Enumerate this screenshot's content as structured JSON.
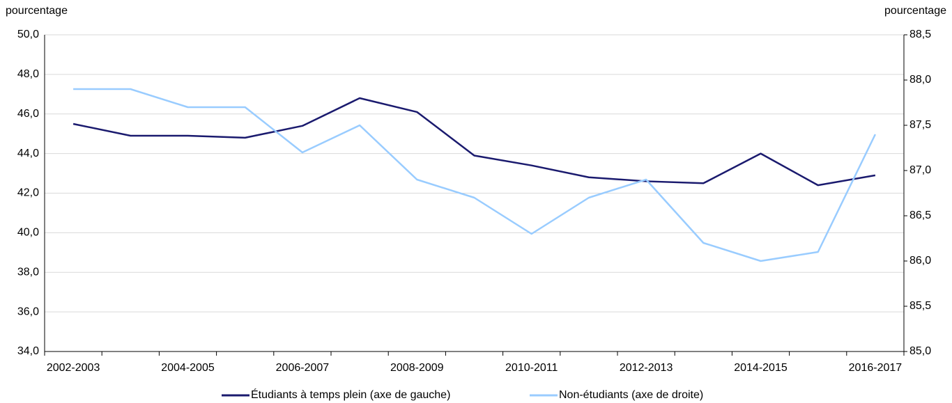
{
  "chart_data": {
    "type": "line",
    "y_label": "pourcentage",
    "y2_label": "pourcentage",
    "categories": [
      "2002-2003",
      null,
      "2004-2005",
      null,
      "2006-2007",
      null,
      "2008-2009",
      null,
      "2010-2011",
      null,
      "2012-2013",
      null,
      "2014-2015",
      null,
      "2016-2017"
    ],
    "series": [
      {
        "name": "Étudiants à temps plein (axe de gauche)",
        "color": "#1a1a6e",
        "values": [
          45.5,
          44.9,
          44.9,
          44.8,
          45.4,
          46.8,
          46.1,
          43.9,
          43.4,
          42.8,
          42.6,
          42.5,
          44.0,
          42.4,
          42.9
        ]
      },
      {
        "name": "Non-étudiants (axe de droite)",
        "color": "#99ccff",
        "axis": "y2",
        "values": [
          87.9,
          87.9,
          87.7,
          87.7,
          87.2,
          87.5,
          86.9,
          86.7,
          86.3,
          86.7,
          86.9,
          86.2,
          86.0,
          86.1,
          87.4
        ]
      }
    ],
    "ylim": [
      34,
      50
    ],
    "yticks": [
      {
        "value": 34,
        "label": "34,0"
      },
      {
        "value": 36,
        "label": "36,0"
      },
      {
        "value": 38,
        "label": "38,0"
      },
      {
        "value": 40,
        "label": "40,0"
      },
      {
        "value": 42,
        "label": "42,0"
      },
      {
        "value": 44,
        "label": "44,0"
      },
      {
        "value": 46,
        "label": "46,0"
      },
      {
        "value": 48,
        "label": "48,0"
      },
      {
        "value": 50,
        "label": "50,0"
      }
    ],
    "y2lim": [
      85,
      88.5
    ],
    "y2ticks": [
      {
        "value": 85,
        "label": "85,0"
      },
      {
        "value": 85.5,
        "label": "85,5"
      },
      {
        "value": 86,
        "label": "86,0"
      },
      {
        "value": 86.5,
        "label": "86,5"
      },
      {
        "value": 87,
        "label": "87,0"
      },
      {
        "value": 87.5,
        "label": "87,5"
      },
      {
        "value": 88,
        "label": "88,0"
      },
      {
        "value": 88.5,
        "label": "88,5"
      }
    ],
    "grid": true,
    "legend": "bottom"
  }
}
